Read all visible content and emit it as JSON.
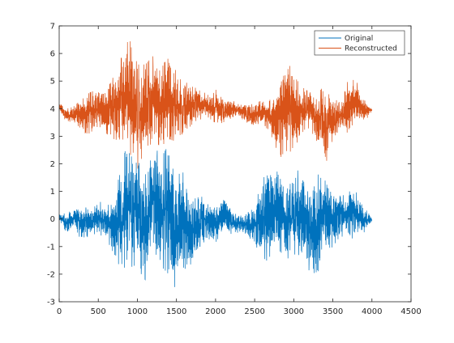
{
  "chart_data": {
    "type": "line",
    "title": "",
    "xlabel": "",
    "ylabel": "",
    "xlim": [
      0,
      4500
    ],
    "ylim": [
      -3,
      7
    ],
    "xticks": [
      0,
      500,
      1000,
      1500,
      2000,
      2500,
      3000,
      3500,
      4000,
      4500
    ],
    "yticks": [
      -3,
      -2,
      -1,
      0,
      1,
      2,
      3,
      4,
      5,
      6,
      7
    ],
    "xtick_labels": [
      "0",
      "500",
      "1000",
      "1500",
      "2000",
      "2500",
      "3000",
      "3500",
      "4000",
      "4500"
    ],
    "ytick_labels": [
      "-3",
      "-2",
      "-1",
      "0",
      "1",
      "2",
      "3",
      "4",
      "5",
      "6",
      "7"
    ],
    "grid": false,
    "legend_position": "top-right",
    "series": [
      {
        "name": "Original",
        "color": "#0072BD",
        "x": [
          0,
          100,
          200,
          300,
          400,
          500,
          600,
          700,
          800,
          900,
          1000,
          1100,
          1200,
          1300,
          1400,
          1500,
          1600,
          1700,
          1800,
          1900,
          2000,
          2100,
          2200,
          2300,
          2400,
          2500,
          2600,
          2700,
          2800,
          2900,
          3000,
          3100,
          3200,
          3300,
          3400,
          3500,
          3600,
          3700,
          3800,
          3900,
          4000
        ],
        "y_max": [
          0.2,
          0.2,
          0.4,
          0.5,
          0.3,
          0.7,
          0.4,
          0.8,
          1.9,
          3.2,
          2.1,
          1.8,
          2.8,
          2.2,
          2.7,
          1.6,
          1.7,
          0.7,
          0.9,
          0.6,
          0.5,
          0.9,
          0.3,
          0.1,
          0.2,
          0.5,
          1.6,
          1.7,
          1.8,
          1.0,
          1.5,
          2.0,
          1.1,
          1.8,
          1.6,
          0.8,
          1.0,
          1.0,
          1.0,
          0.4,
          0.1
        ],
        "y_min": [
          -0.1,
          -0.5,
          -0.3,
          -0.9,
          -0.5,
          -0.6,
          -0.6,
          -1.4,
          -1.8,
          -1.7,
          -1.8,
          -2.2,
          -1.2,
          -1.7,
          -2.0,
          -2.7,
          -2.1,
          -1.6,
          -1.0,
          -0.7,
          -0.9,
          -0.3,
          -0.6,
          -0.5,
          -0.6,
          -0.9,
          -1.4,
          -1.6,
          -1.1,
          -1.4,
          -1.5,
          -1.2,
          -1.9,
          -2.0,
          -1.3,
          -1.0,
          -0.6,
          -0.8,
          -0.6,
          -0.5,
          -0.1
        ]
      },
      {
        "name": "Reconstructed",
        "color": "#D95319",
        "x": [
          0,
          100,
          200,
          300,
          400,
          500,
          600,
          700,
          800,
          900,
          1000,
          1100,
          1200,
          1300,
          1400,
          1500,
          1600,
          1700,
          1800,
          1900,
          2000,
          2100,
          2200,
          2300,
          2400,
          2500,
          2600,
          2700,
          2800,
          2900,
          3000,
          3100,
          3200,
          3300,
          3400,
          3500,
          3600,
          3700,
          3800,
          3900,
          4000
        ],
        "y_max": [
          4.2,
          4.0,
          4.1,
          4.4,
          4.6,
          4.7,
          4.6,
          5.2,
          5.9,
          6.6,
          5.6,
          5.6,
          5.9,
          5.4,
          6.0,
          5.4,
          5.0,
          4.8,
          4.7,
          4.5,
          4.7,
          4.3,
          4.3,
          4.2,
          4.1,
          4.2,
          4.3,
          4.4,
          5.0,
          5.9,
          5.2,
          4.8,
          4.6,
          4.5,
          4.9,
          4.4,
          4.2,
          5.1,
          5.0,
          4.4,
          4.0
        ],
        "y_min": [
          3.9,
          3.5,
          3.5,
          3.1,
          3.1,
          3.3,
          3.1,
          2.9,
          2.8,
          2.4,
          1.8,
          2.3,
          2.9,
          2.6,
          2.9,
          2.8,
          3.2,
          3.4,
          3.6,
          3.7,
          3.4,
          3.5,
          3.6,
          3.7,
          3.5,
          3.4,
          3.5,
          3.1,
          2.4,
          2.0,
          2.6,
          3.0,
          3.3,
          2.8,
          1.9,
          2.9,
          3.3,
          3.1,
          3.5,
          3.5,
          3.9
        ]
      }
    ]
  }
}
